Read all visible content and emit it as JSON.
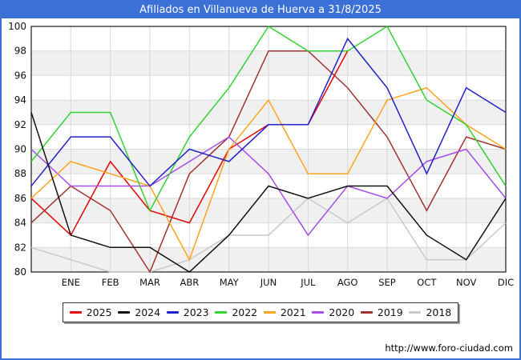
{
  "window": {
    "title": "Afiliados en Villanueva de Huerva a 31/8/2025",
    "footer_url": "http://www.foro-ciudad.com",
    "titlebar_color": "#3b70d7"
  },
  "chart_data": {
    "type": "line",
    "title": "Afiliados en Villanueva de Huerva a 31/8/2025",
    "x_labels": [
      "",
      "ENE",
      "FEB",
      "MAR",
      "ABR",
      "MAY",
      "JUN",
      "JUL",
      "AGO",
      "SEP",
      "OCT",
      "NOV",
      "DIC"
    ],
    "y_ticks": [
      100,
      98,
      96,
      94,
      92,
      90,
      88,
      86,
      84,
      82,
      80
    ],
    "ylim": [
      80,
      100
    ],
    "grid": true,
    "band_color": "#f0f0f0",
    "gridline_color": "#d9d9d9",
    "plot_border_color": "#1a1a1a",
    "legend_position": "bottom",
    "series": [
      {
        "name": "2025",
        "color": "#e60000",
        "values": [
          86,
          83,
          89,
          85,
          84,
          90,
          92,
          92,
          98
        ]
      },
      {
        "name": "2024",
        "color": "#111111",
        "values": [
          93,
          83,
          82,
          82,
          80,
          83,
          87,
          86,
          87,
          87,
          83,
          81,
          86
        ]
      },
      {
        "name": "2023",
        "color": "#2222cc",
        "values": [
          87,
          91,
          91,
          87,
          90,
          89,
          92,
          92,
          99,
          95,
          88,
          95,
          93
        ]
      },
      {
        "name": "2022",
        "color": "#32d232",
        "values": [
          89,
          93,
          93,
          85,
          91,
          95,
          100,
          98,
          98,
          100,
          94,
          92,
          87
        ]
      },
      {
        "name": "2021",
        "color": "#ffa41b",
        "values": [
          86,
          89,
          88,
          87,
          81,
          90,
          94,
          88,
          88,
          94,
          95,
          92,
          90
        ]
      },
      {
        "name": "2020",
        "color": "#a64de8",
        "values": [
          90,
          87,
          87,
          87,
          89,
          91,
          88,
          83,
          87,
          86,
          89,
          90,
          86
        ]
      },
      {
        "name": "2019",
        "color": "#a13232",
        "values": [
          84,
          87,
          85,
          80,
          88,
          91,
          98,
          98,
          95,
          91,
          85,
          91,
          90
        ]
      },
      {
        "name": "2018",
        "color": "#c9c9c9",
        "values": [
          82,
          81,
          80,
          80,
          81,
          83,
          83,
          86,
          84,
          86,
          81,
          81,
          84
        ]
      }
    ],
    "draw_order": [
      "2025",
      "2018",
      "2019",
      "2020",
      "2021",
      "2022",
      "2023",
      "2024"
    ]
  }
}
